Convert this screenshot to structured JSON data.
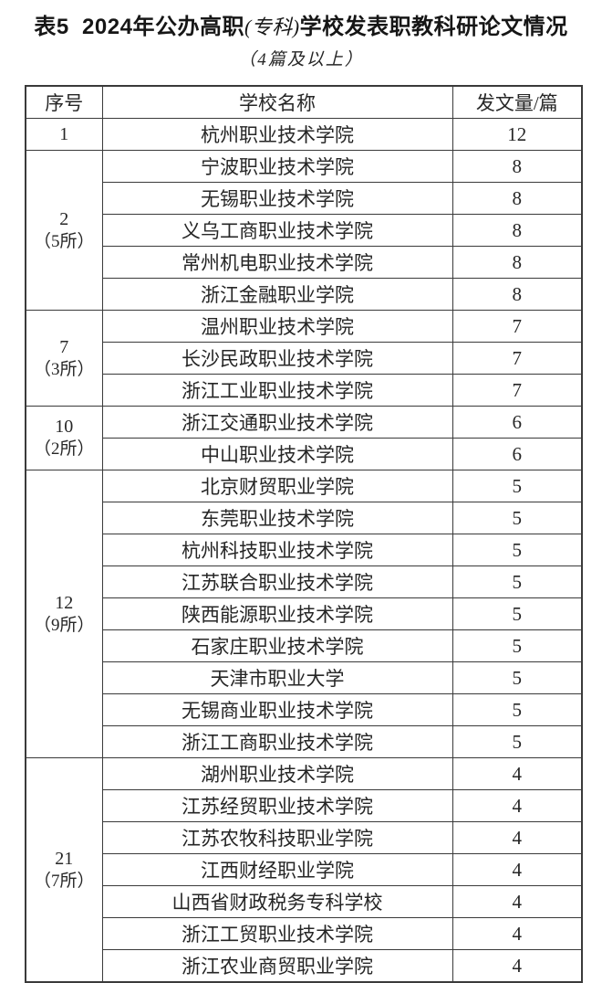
{
  "title": {
    "part1": "表5  2024年公办高职",
    "part2": "(专科)",
    "part3": "学校发表职教科研论文情况"
  },
  "subtitle": "（4篇及以上）",
  "table": {
    "headers": [
      "序号",
      "学校名称",
      "发文量/篇"
    ],
    "groups": [
      {
        "seq": "1",
        "count_label": "",
        "schools": [
          {
            "name": "杭州职业技术学院",
            "count": "12"
          }
        ]
      },
      {
        "seq": "2",
        "count_label": "（5所）",
        "schools": [
          {
            "name": "宁波职业技术学院",
            "count": "8"
          },
          {
            "name": "无锡职业技术学院",
            "count": "8"
          },
          {
            "name": "义乌工商职业技术学院",
            "count": "8"
          },
          {
            "name": "常州机电职业技术学院",
            "count": "8"
          },
          {
            "name": "浙江金融职业学院",
            "count": "8"
          }
        ]
      },
      {
        "seq": "7",
        "count_label": "（3所）",
        "schools": [
          {
            "name": "温州职业技术学院",
            "count": "7"
          },
          {
            "name": "长沙民政职业技术学院",
            "count": "7"
          },
          {
            "name": "浙江工业职业技术学院",
            "count": "7"
          }
        ]
      },
      {
        "seq": "10",
        "count_label": "（2所）",
        "schools": [
          {
            "name": "浙江交通职业技术学院",
            "count": "6"
          },
          {
            "name": "中山职业技术学院",
            "count": "6"
          }
        ]
      },
      {
        "seq": "12",
        "count_label": "（9所）",
        "schools": [
          {
            "name": "北京财贸职业学院",
            "count": "5"
          },
          {
            "name": "东莞职业技术学院",
            "count": "5"
          },
          {
            "name": "杭州科技职业技术学院",
            "count": "5"
          },
          {
            "name": "江苏联合职业技术学院",
            "count": "5"
          },
          {
            "name": "陕西能源职业技术学院",
            "count": "5"
          },
          {
            "name": "石家庄职业技术学院",
            "count": "5"
          },
          {
            "name": "天津市职业大学",
            "count": "5"
          },
          {
            "name": "无锡商业职业技术学院",
            "count": "5"
          },
          {
            "name": "浙江工商职业技术学院",
            "count": "5"
          }
        ]
      },
      {
        "seq": "21",
        "count_label": "（7所）",
        "schools": [
          {
            "name": "湖州职业技术学院",
            "count": "4"
          },
          {
            "name": "江苏经贸职业技术学院",
            "count": "4"
          },
          {
            "name": "江苏农牧科技职业学院",
            "count": "4"
          },
          {
            "name": "江西财经职业学院",
            "count": "4"
          },
          {
            "name": "山西省财政税务专科学校",
            "count": "4"
          },
          {
            "name": "浙江工贸职业技术学院",
            "count": "4"
          },
          {
            "name": "浙江农业商贸职业学院",
            "count": "4"
          }
        ]
      }
    ]
  },
  "colors": {
    "text": "#262626",
    "border": "#3a3a3a",
    "background": "#ffffff"
  }
}
